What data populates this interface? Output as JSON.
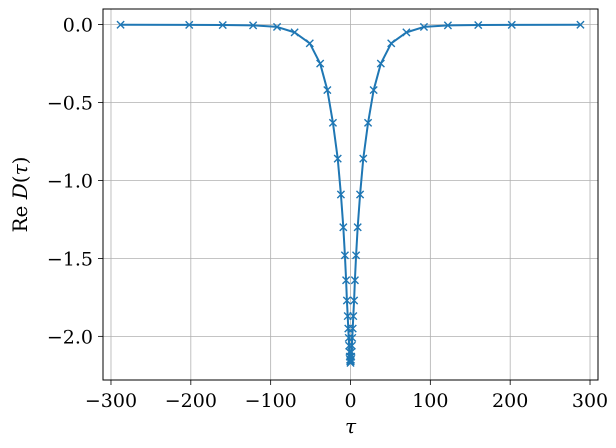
{
  "chart_data": {
    "type": "line",
    "xlabel": "τ",
    "ylabel_prefix": "Re ",
    "ylabel_func": "D",
    "ylabel_open": "(",
    "ylabel_var": "τ",
    "ylabel_close": ")",
    "xlim": [
      -310,
      310
    ],
    "ylim": [
      -2.28,
      0.1
    ],
    "xticks": [
      -300,
      -200,
      -100,
      0,
      100,
      200,
      300
    ],
    "xtick_labels": [
      "−300",
      "−200",
      "−100",
      "0",
      "100",
      "200",
      "300"
    ],
    "yticks": [
      0.0,
      -0.5,
      -1.0,
      -1.5,
      -2.0
    ],
    "ytick_labels": [
      "0.0",
      "−0.5",
      "−1.0",
      "−1.5",
      "−2.0"
    ],
    "grid": true,
    "series": [
      {
        "color": "#1f77b4",
        "marker": "x",
        "x": [
          -288,
          -202,
          -160,
          -122,
          -92,
          -70,
          -51,
          -38,
          -29,
          -22,
          -16,
          -12,
          -9,
          -7,
          -5.5,
          -4.5,
          -3.5,
          -2.8,
          -2.2,
          -1.7,
          -1.3,
          -0.9,
          -0.6,
          -0.3,
          0,
          0.3,
          0.6,
          0.9,
          1.3,
          1.7,
          2.2,
          2.8,
          3.5,
          4.5,
          5.5,
          7,
          9,
          12,
          16,
          22,
          29,
          38,
          51,
          70,
          92,
          122,
          160,
          202,
          288
        ],
        "y": [
          -0.001,
          -0.002,
          -0.003,
          -0.005,
          -0.015,
          -0.05,
          -0.12,
          -0.25,
          -0.42,
          -0.63,
          -0.86,
          -1.09,
          -1.3,
          -1.48,
          -1.64,
          -1.77,
          -1.87,
          -1.95,
          -2.01,
          -2.06,
          -2.1,
          -2.13,
          -2.15,
          -2.16,
          -2.17,
          -2.16,
          -2.15,
          -2.13,
          -2.1,
          -2.06,
          -2.01,
          -1.95,
          -1.87,
          -1.77,
          -1.64,
          -1.48,
          -1.3,
          -1.09,
          -0.86,
          -0.63,
          -0.42,
          -0.25,
          -0.12,
          -0.05,
          -0.015,
          -0.005,
          -0.003,
          -0.002,
          -0.001
        ]
      }
    ]
  }
}
